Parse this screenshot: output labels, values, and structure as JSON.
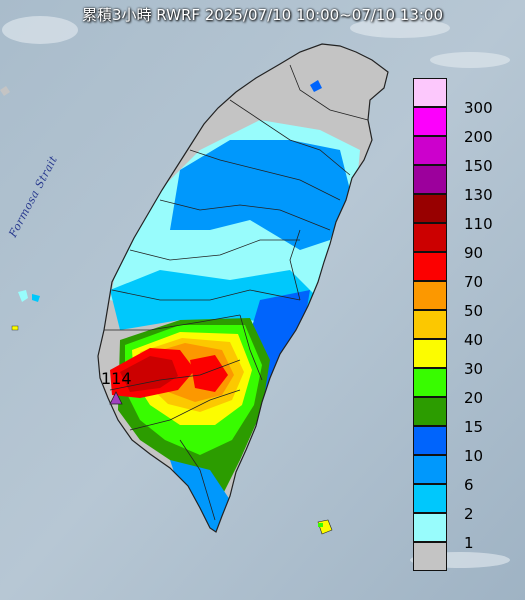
{
  "title": "累積3小時 RWRF 2025/07/10 10:00~07/10 13:00",
  "strait_label": "Formosa Strait",
  "max_marker": {
    "value": "114",
    "color": "#a040c0"
  },
  "corner_label": "",
  "legend": [
    {
      "label": "300",
      "color": "#fcc8fc"
    },
    {
      "label": "200",
      "color": "#fc00fc"
    },
    {
      "label": "150",
      "color": "#cc00cc"
    },
    {
      "label": "130",
      "color": "#9c009c"
    },
    {
      "label": "110",
      "color": "#980000"
    },
    {
      "label": "90",
      "color": "#cc0000"
    },
    {
      "label": "70",
      "color": "#fc0000"
    },
    {
      "label": "50",
      "color": "#fc9800"
    },
    {
      "label": "40",
      "color": "#fcc800"
    },
    {
      "label": "30",
      "color": "#fcfc00"
    },
    {
      "label": "20",
      "color": "#38fc00"
    },
    {
      "label": "15",
      "color": "#2c9c00"
    },
    {
      "label": "10",
      "color": "#0064fc"
    },
    {
      "label": "6",
      "color": "#0098fc"
    },
    {
      "label": "2",
      "color": "#00c8fc"
    },
    {
      "label": "1",
      "color": "#98fcfc"
    },
    {
      "label": "",
      "color": "#c4c4c4"
    }
  ]
}
